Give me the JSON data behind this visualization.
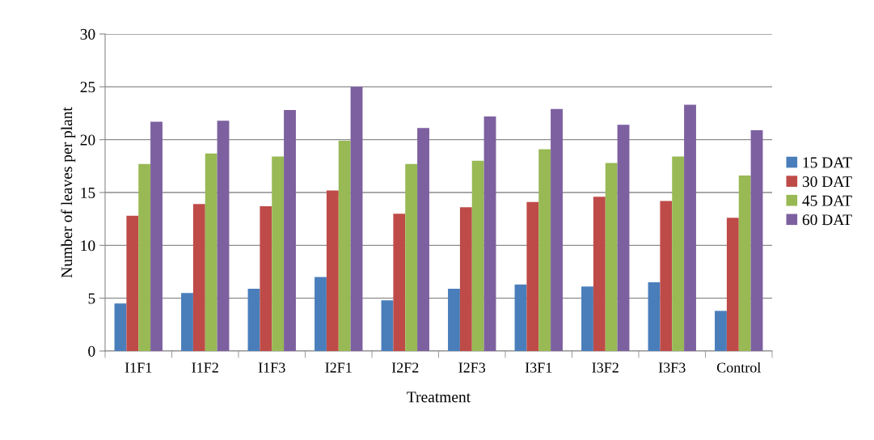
{
  "chart_data": {
    "type": "bar",
    "xlabel": "Treatment",
    "ylabel": "Number of leaves per plant",
    "categories": [
      "I1F1",
      "I1F2",
      "I1F3",
      "I2F1",
      "I2F2",
      "I2F3",
      "I3F1",
      "I3F2",
      "I3F3",
      "Control"
    ],
    "series": [
      {
        "name": "15 DAT",
        "color": "#4a7ebb",
        "values": [
          4.5,
          5.5,
          5.9,
          7.0,
          4.8,
          5.9,
          6.3,
          6.1,
          6.5,
          3.8
        ]
      },
      {
        "name": "30 DAT",
        "color": "#be4b48",
        "values": [
          12.8,
          13.9,
          13.7,
          15.2,
          13.0,
          13.6,
          14.1,
          14.6,
          14.2,
          12.6
        ]
      },
      {
        "name": "45 DAT",
        "color": "#98b954",
        "values": [
          17.7,
          18.7,
          18.4,
          19.9,
          17.7,
          18.0,
          19.1,
          17.8,
          18.4,
          16.6
        ]
      },
      {
        "name": "60 DAT",
        "color": "#7d60a0",
        "values": [
          21.7,
          21.8,
          22.8,
          25.0,
          21.1,
          22.2,
          22.9,
          21.4,
          23.3,
          20.9
        ]
      }
    ],
    "ylim": [
      0,
      30
    ],
    "yticks": [
      0,
      5,
      10,
      15,
      20,
      25,
      30
    ],
    "grid": "y",
    "legend": "right"
  }
}
